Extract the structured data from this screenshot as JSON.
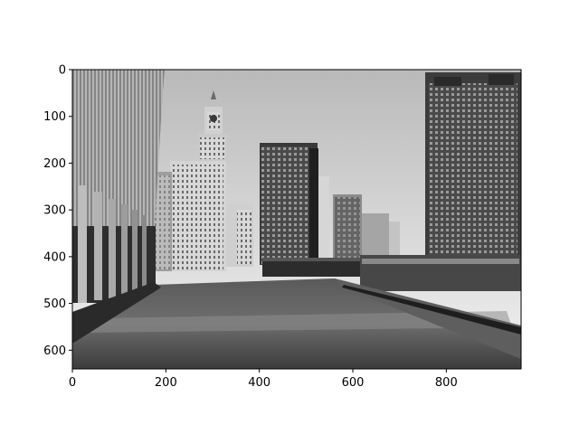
{
  "figure": {
    "kind": "image-plot",
    "colormap": "gray",
    "image_size": {
      "width": 960,
      "height": 640
    }
  },
  "chart_data": {
    "type": "image",
    "title": "",
    "xlabel": "",
    "ylabel": "",
    "xlim": [
      0,
      960
    ],
    "ylim": [
      640,
      0
    ],
    "xticks": [
      0,
      200,
      400,
      600,
      800
    ],
    "yticks": [
      0,
      100,
      200,
      300,
      400,
      500,
      600
    ],
    "grid": false,
    "legend": "none"
  }
}
